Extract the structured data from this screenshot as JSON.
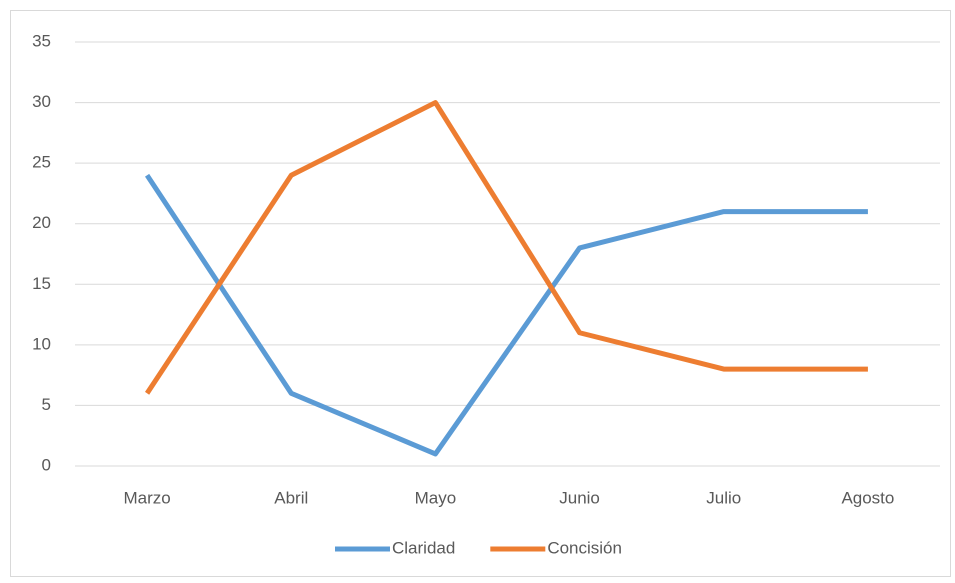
{
  "chart_data": {
    "type": "line",
    "categories": [
      "Marzo",
      "Abril",
      "Mayo",
      "Junio",
      "Julio",
      "Agosto"
    ],
    "series": [
      {
        "name": "Claridad",
        "color": "#5b9bd5",
        "values": [
          24,
          6,
          1,
          18,
          21,
          21
        ]
      },
      {
        "name": "Concisión",
        "color": "#ed7d31",
        "values": [
          6,
          24,
          30,
          11,
          8,
          8
        ]
      }
    ],
    "ylim": [
      0,
      35
    ],
    "yticks": [
      0,
      5,
      10,
      15,
      20,
      25,
      30,
      35
    ],
    "grid": true,
    "legend": "bottom"
  }
}
